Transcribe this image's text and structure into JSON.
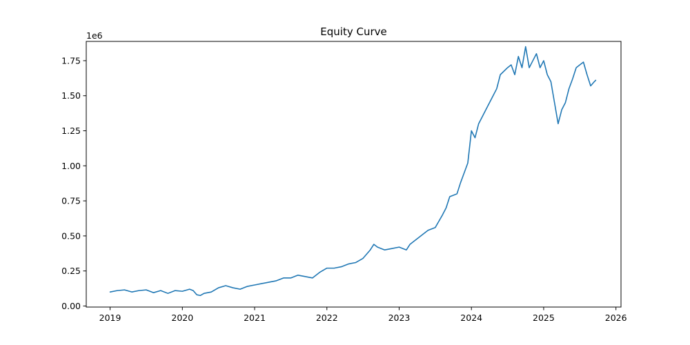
{
  "chart_data": {
    "type": "line",
    "title": "Equity Curve",
    "xlabel": "",
    "ylabel": "",
    "y_offset_label": "1e6",
    "y_multiplier": 1000000,
    "grid": false,
    "legend": "none",
    "xlim": [
      2018.67,
      2026.07
    ],
    "ylim": [
      -0.0075,
      1.8875
    ],
    "x_ticks": [
      2019,
      2020,
      2021,
      2022,
      2023,
      2024,
      2025,
      2026
    ],
    "x_tick_labels": [
      "2019",
      "2020",
      "2021",
      "2022",
      "2023",
      "2024",
      "2025",
      "2026"
    ],
    "y_ticks": [
      0.0,
      0.25,
      0.5,
      0.75,
      1.0,
      1.25,
      1.5,
      1.75
    ],
    "y_tick_labels": [
      "0.00",
      "0.25",
      "0.50",
      "0.75",
      "1.00",
      "1.25",
      "1.50",
      "1.75"
    ],
    "series": [
      {
        "color": "#1f77b4",
        "x": [
          2019.0,
          2019.1,
          2019.2,
          2019.3,
          2019.4,
          2019.5,
          2019.6,
          2019.7,
          2019.8,
          2019.9,
          2020.0,
          2020.1,
          2020.15,
          2020.2,
          2020.25,
          2020.3,
          2020.4,
          2020.5,
          2020.6,
          2020.7,
          2020.8,
          2020.9,
          2021.0,
          2021.1,
          2021.2,
          2021.3,
          2021.4,
          2021.5,
          2021.6,
          2021.7,
          2021.8,
          2021.9,
          2022.0,
          2022.1,
          2022.2,
          2022.3,
          2022.4,
          2022.5,
          2022.6,
          2022.65,
          2022.7,
          2022.8,
          2022.9,
          2023.0,
          2023.1,
          2023.15,
          2023.2,
          2023.3,
          2023.4,
          2023.5,
          2023.6,
          2023.65,
          2023.7,
          2023.75,
          2023.8,
          2023.85,
          2023.9,
          2023.95,
          2024.0,
          2024.05,
          2024.1,
          2024.15,
          2024.2,
          2024.3,
          2024.35,
          2024.4,
          2024.5,
          2024.55,
          2024.6,
          2024.65,
          2024.7,
          2024.75,
          2024.8,
          2024.85,
          2024.9,
          2024.95,
          2025.0,
          2025.05,
          2025.1,
          2025.15,
          2025.2,
          2025.25,
          2025.3,
          2025.35,
          2025.4,
          2025.45,
          2025.5,
          2025.55,
          2025.6,
          2025.65,
          2025.7,
          2025.72
        ],
        "y": [
          0.1,
          0.11,
          0.115,
          0.1,
          0.11,
          0.115,
          0.095,
          0.11,
          0.09,
          0.11,
          0.105,
          0.12,
          0.11,
          0.08,
          0.075,
          0.09,
          0.1,
          0.13,
          0.145,
          0.13,
          0.12,
          0.14,
          0.15,
          0.16,
          0.17,
          0.18,
          0.2,
          0.2,
          0.22,
          0.21,
          0.2,
          0.24,
          0.27,
          0.27,
          0.28,
          0.3,
          0.31,
          0.34,
          0.4,
          0.44,
          0.42,
          0.4,
          0.41,
          0.42,
          0.4,
          0.44,
          0.46,
          0.5,
          0.54,
          0.56,
          0.65,
          0.7,
          0.78,
          0.79,
          0.8,
          0.88,
          0.95,
          1.02,
          1.25,
          1.2,
          1.3,
          1.35,
          1.4,
          1.5,
          1.55,
          1.65,
          1.7,
          1.72,
          1.65,
          1.78,
          1.7,
          1.85,
          1.7,
          1.75,
          1.8,
          1.7,
          1.75,
          1.65,
          1.6,
          1.45,
          1.3,
          1.4,
          1.45,
          1.55,
          1.62,
          1.7,
          1.72,
          1.74,
          1.65,
          1.57,
          1.6,
          1.61
        ]
      }
    ]
  }
}
